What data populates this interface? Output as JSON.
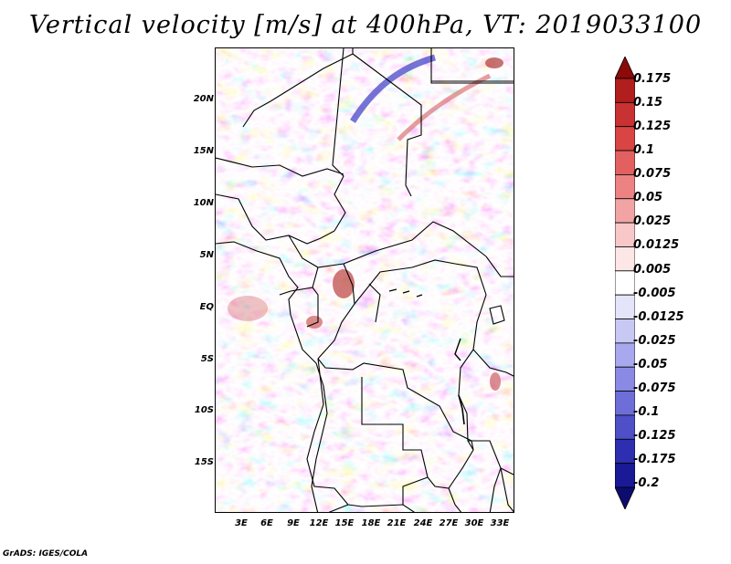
{
  "title": "Vertical velocity [m/s] at 400hPa, VT: 2019033100",
  "map": {
    "lat_ticks": [
      "20N",
      "15N",
      "10N",
      "5N",
      "EQ",
      "5S",
      "10S",
      "15S"
    ],
    "lon_ticks": [
      "3E",
      "6E",
      "9E",
      "12E",
      "15E",
      "18E",
      "21E",
      "24E",
      "27E",
      "30E",
      "33E"
    ]
  },
  "colorbar": {
    "labels": [
      "0.175",
      "0.15",
      "0.125",
      "0.1",
      "0.075",
      "0.05",
      "0.025",
      "0.0125",
      "0.005",
      "-0.005",
      "-0.0125",
      "-0.025",
      "-0.05",
      "-0.075",
      "-0.1",
      "-0.125",
      "-0.175",
      "-0.2"
    ],
    "colors": [
      "#8b0a0a",
      "#b01e1e",
      "#c83232",
      "#d94444",
      "#e36060",
      "#ec8282",
      "#f2a4a4",
      "#f8c8c8",
      "#fde6e6",
      "#ffffff",
      "#e4e4fa",
      "#c8c8f4",
      "#a8a8ee",
      "#8a8ae4",
      "#6e6ed8",
      "#4f4fc8",
      "#2e2eb0",
      "#1a1a96",
      "#0c0c6e"
    ]
  },
  "credit": "GrADS: IGES/COLA"
}
